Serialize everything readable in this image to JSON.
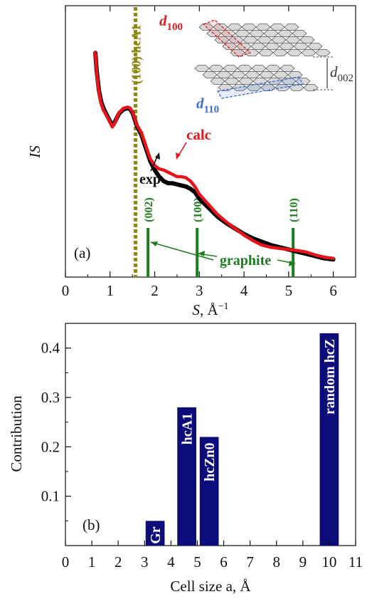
{
  "chart_data": [
    {
      "type": "line",
      "panel_label": "(a)",
      "xlabel_main": "S",
      "xlabel_unit": ", Å",
      "xlabel_exp": "−1",
      "ylabel": "IS",
      "xlim": [
        0,
        6.5
      ],
      "xticks": [
        0,
        1,
        2,
        3,
        4,
        5,
        6
      ],
      "tick_labels": [
        "0",
        "1",
        "2",
        "3",
        "4",
        "5",
        "6"
      ],
      "series": [
        {
          "name": "exp",
          "color": "#000000",
          "x": [
            0.67,
            0.7,
            0.75,
            0.8,
            0.85,
            0.9,
            0.95,
            1.0,
            1.05,
            1.1,
            1.15,
            1.2,
            1.3,
            1.4,
            1.45,
            1.5,
            1.55,
            1.6,
            1.7,
            1.8,
            1.9,
            2.0,
            2.1,
            2.2,
            2.3,
            2.4,
            2.5,
            2.6,
            2.7,
            2.8,
            2.9,
            3.0,
            3.2,
            3.4,
            3.6,
            3.8,
            4.0,
            4.2,
            4.4,
            4.6,
            4.8,
            5.0,
            5.2,
            5.4,
            5.6,
            5.8,
            6.0
          ],
          "y": [
            0.96,
            0.88,
            0.79,
            0.74,
            0.71,
            0.69,
            0.67,
            0.65,
            0.635,
            0.645,
            0.665,
            0.685,
            0.705,
            0.71,
            0.705,
            0.69,
            0.66,
            0.63,
            0.59,
            0.53,
            0.47,
            0.43,
            0.4,
            0.38,
            0.37,
            0.37,
            0.365,
            0.36,
            0.355,
            0.345,
            0.33,
            0.3,
            0.26,
            0.22,
            0.19,
            0.165,
            0.14,
            0.12,
            0.105,
            0.09,
            0.08,
            0.07,
            0.06,
            0.05,
            0.04,
            0.03,
            0.025
          ]
        },
        {
          "name": "calc",
          "color": "#e8141b",
          "x": [
            0.67,
            0.7,
            0.75,
            0.8,
            0.85,
            0.9,
            0.95,
            1.0,
            1.05,
            1.1,
            1.15,
            1.2,
            1.3,
            1.4,
            1.45,
            1.5,
            1.55,
            1.6,
            1.7,
            1.8,
            1.9,
            2.0,
            2.1,
            2.2,
            2.3,
            2.4,
            2.5,
            2.6,
            2.7,
            2.8,
            2.9,
            3.0,
            3.2,
            3.4,
            3.6,
            3.8,
            4.0,
            4.2,
            4.4,
            4.6,
            4.8,
            5.0,
            5.2,
            5.4,
            5.6,
            5.8,
            6.0
          ],
          "y": [
            0.96,
            0.87,
            0.78,
            0.73,
            0.7,
            0.685,
            0.665,
            0.645,
            0.625,
            0.64,
            0.665,
            0.69,
            0.71,
            0.715,
            0.71,
            0.695,
            0.665,
            0.635,
            0.6,
            0.54,
            0.48,
            0.45,
            0.435,
            0.43,
            0.42,
            0.41,
            0.4,
            0.4,
            0.395,
            0.38,
            0.355,
            0.32,
            0.275,
            0.23,
            0.195,
            0.165,
            0.135,
            0.11,
            0.09,
            0.08,
            0.075,
            0.07,
            0.065,
            0.058,
            0.045,
            0.035,
            0.03
          ]
        }
      ],
      "hcA1_line": {
        "x": 1.57,
        "label": "(100) hcA1",
        "color": "#8a8a1a"
      },
      "graphite_lines": [
        {
          "x": 1.85,
          "label": "(002)"
        },
        {
          "x": 2.95,
          "label": "(100)"
        },
        {
          "x": 5.1,
          "label": "(110)"
        }
      ],
      "graphite_label": "graphite",
      "exp_label": "exp",
      "calc_label": "calc",
      "inset": {
        "d100": {
          "main": "d",
          "sub": "100",
          "color": "#d42020"
        },
        "d110": {
          "main": "d",
          "sub": "110",
          "color": "#3a6fd8"
        },
        "d002": {
          "main": "d",
          "sub": "002",
          "color": "#333333"
        }
      }
    },
    {
      "type": "bar",
      "panel_label": "(b)",
      "xlabel": "Cell size a, Å",
      "ylabel": "Contribution",
      "xlim": [
        0,
        11
      ],
      "ylim": [
        0,
        0.45
      ],
      "xticks": [
        0,
        1,
        2,
        3,
        4,
        5,
        6,
        7,
        8,
        9,
        10,
        11
      ],
      "yticks": [
        0.1,
        0.2,
        0.3,
        0.4
      ],
      "xtick_labels": [
        "0",
        "1",
        "2",
        "3",
        "4",
        "5",
        "6",
        "7",
        "8",
        "9",
        "10",
        "11"
      ],
      "ytick_labels": [
        "0.1",
        "0.2",
        "0.3",
        "0.4"
      ],
      "bar_color": "#0c0c7a",
      "bars": [
        {
          "x": 3.4,
          "value": 0.05,
          "label": "Gr"
        },
        {
          "x": 4.6,
          "value": 0.28,
          "label": "hcA1"
        },
        {
          "x": 5.45,
          "value": 0.22,
          "label": "hcZn0"
        },
        {
          "x": 10.0,
          "value": 0.43,
          "label": "random hcZ"
        }
      ]
    }
  ]
}
